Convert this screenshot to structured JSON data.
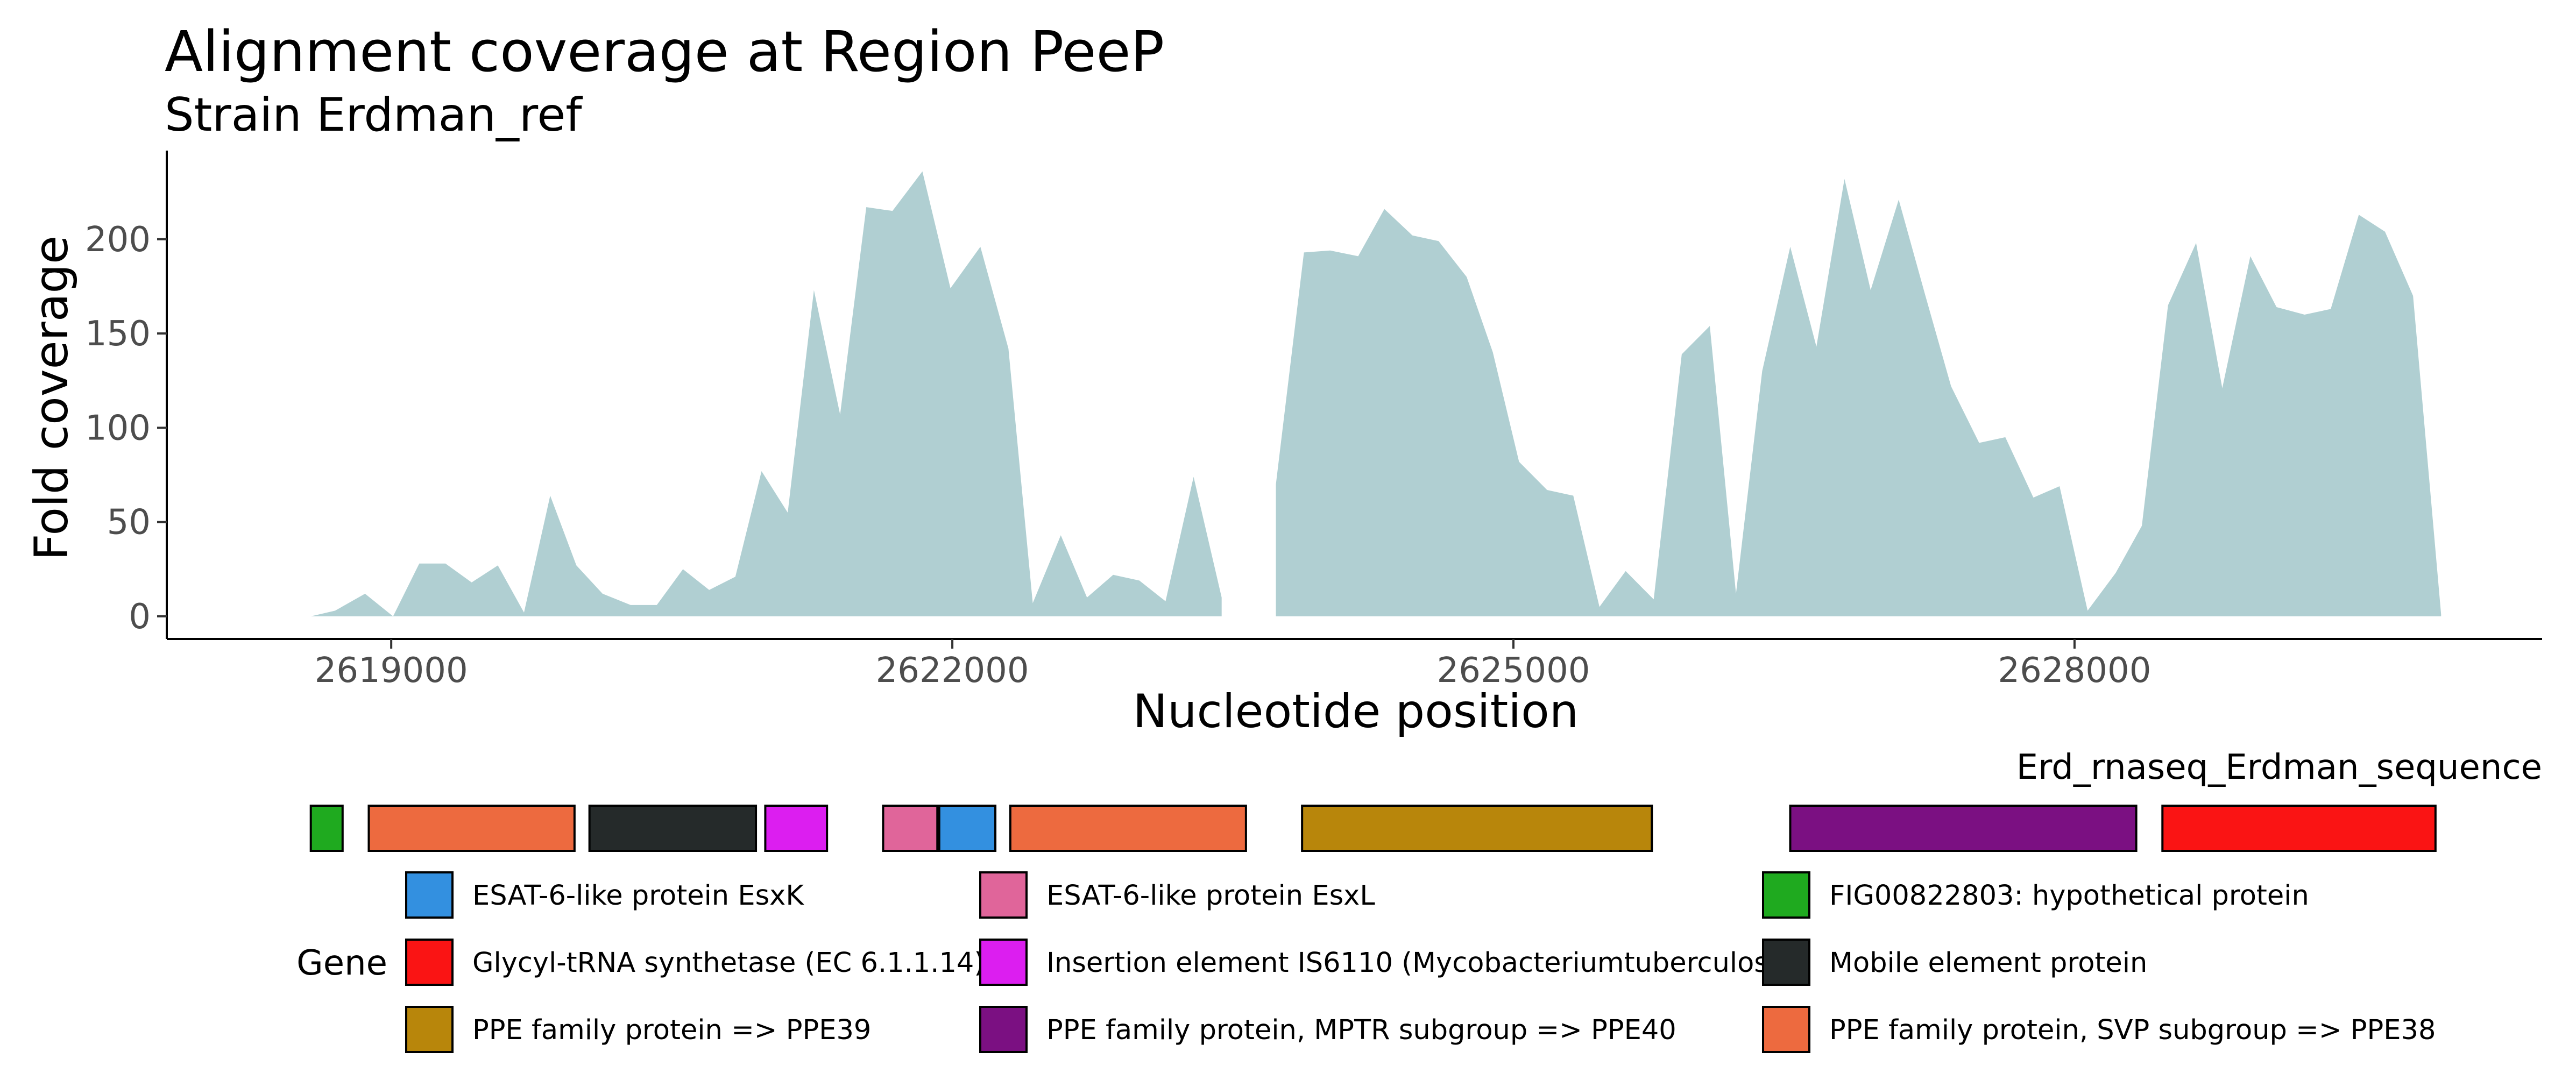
{
  "chart_data": {
    "type": "area",
    "title": "Alignment coverage at Region PeeP",
    "subtitle": "Strain Erdman_ref",
    "xlabel": "Nucleotide position",
    "ylabel": "Fold coverage",
    "xlim": [
      2617800,
      2630500
    ],
    "ylim": [
      -12,
      247
    ],
    "x_ticks": [
      2619000,
      2622000,
      2625000,
      2628000
    ],
    "y_ticks": [
      0,
      50,
      100,
      150,
      200
    ],
    "fill_color": "#b0cfd2",
    "grid": false,
    "series": [
      {
        "segments": [
          [
            [
              2618570,
              0
            ],
            [
              2618700,
              3
            ],
            [
              2618860,
              12
            ],
            [
              2619010,
              0
            ],
            [
              2619150,
              28
            ],
            [
              2619290,
              28
            ],
            [
              2619430,
              18
            ],
            [
              2619570,
              27
            ],
            [
              2619710,
              2
            ],
            [
              2619850,
              64
            ],
            [
              2619990,
              27
            ],
            [
              2620130,
              12
            ],
            [
              2620280,
              6
            ],
            [
              2620420,
              6
            ],
            [
              2620560,
              25
            ],
            [
              2620700,
              14
            ],
            [
              2620840,
              21
            ],
            [
              2620980,
              77
            ],
            [
              2621120,
              55
            ],
            [
              2621260,
              173
            ],
            [
              2621400,
              107
            ],
            [
              2621540,
              217
            ],
            [
              2621680,
              215
            ],
            [
              2621840,
              236
            ],
            [
              2621990,
              174
            ],
            [
              2622150,
              196
            ],
            [
              2622300,
              142
            ],
            [
              2622430,
              7
            ],
            [
              2622580,
              43
            ],
            [
              2622720,
              10
            ],
            [
              2622860,
              22
            ],
            [
              2623000,
              19
            ],
            [
              2623140,
              8
            ],
            [
              2623290,
              74
            ],
            [
              2623440,
              10
            ],
            [
              2623440,
              0
            ]
          ],
          [
            [
              2623730,
              0
            ],
            [
              2623730,
              70
            ],
            [
              2623880,
              193
            ],
            [
              2624020,
              194
            ],
            [
              2624170,
              191
            ],
            [
              2624310,
              216
            ],
            [
              2624460,
              202
            ],
            [
              2624600,
              199
            ],
            [
              2624750,
              180
            ],
            [
              2624890,
              140
            ],
            [
              2625030,
              82
            ],
            [
              2625180,
              67
            ],
            [
              2625320,
              64
            ],
            [
              2625460,
              5
            ],
            [
              2625600,
              24
            ],
            [
              2625750,
              9
            ],
            [
              2625900,
              139
            ],
            [
              2626050,
              154
            ],
            [
              2626190,
              12
            ],
            [
              2626330,
              130
            ],
            [
              2626480,
              196
            ],
            [
              2626620,
              143
            ],
            [
              2626770,
              232
            ],
            [
              2626910,
              173
            ],
            [
              2627060,
              221
            ],
            [
              2627200,
              171
            ],
            [
              2627340,
              122
            ],
            [
              2627490,
              92
            ],
            [
              2627630,
              95
            ],
            [
              2627780,
              63
            ],
            [
              2627920,
              69
            ],
            [
              2628070,
              3
            ],
            [
              2628220,
              23
            ],
            [
              2628360,
              48
            ],
            [
              2628500,
              165
            ],
            [
              2628650,
              198
            ],
            [
              2628790,
              121
            ],
            [
              2628940,
              191
            ],
            [
              2629080,
              164
            ],
            [
              2629230,
              160
            ],
            [
              2629370,
              163
            ],
            [
              2629520,
              213
            ],
            [
              2629660,
              204
            ],
            [
              2629810,
              170
            ],
            [
              2629960,
              1
            ],
            [
              2629960,
              0
            ]
          ]
        ]
      }
    ]
  },
  "gene_track": {
    "label": "Erd_rnaseq_Erdman_sequence",
    "genes": [
      {
        "start": 2618570,
        "end": 2618740,
        "color": "#1faa1f"
      },
      {
        "start": 2618880,
        "end": 2619980,
        "color": "#ed6a3f"
      },
      {
        "start": 2620060,
        "end": 2620950,
        "color": "#252a2a"
      },
      {
        "start": 2621000,
        "end": 2621330,
        "color": "#dc1ef0"
      },
      {
        "start": 2621630,
        "end": 2621920,
        "color": "#e0659a"
      },
      {
        "start": 2621930,
        "end": 2622230,
        "color": "#3390e0"
      },
      {
        "start": 2622310,
        "end": 2623570,
        "color": "#ed6a3f"
      },
      {
        "start": 2623870,
        "end": 2625740,
        "color": "#b8860b"
      },
      {
        "start": 2626480,
        "end": 2628330,
        "color": "#7b1082"
      },
      {
        "start": 2628470,
        "end": 2629930,
        "color": "#fa1414"
      }
    ]
  },
  "legend": {
    "title": "Gene",
    "entries": [
      {
        "label": "ESAT-6-like protein EsxK",
        "color": "#3390e0"
      },
      {
        "label": "ESAT-6-like protein EsxL",
        "color": "#e0659a"
      },
      {
        "label": "FIG00822803: hypothetical protein",
        "color": "#1faa1f"
      },
      {
        "label": "Glycyl-tRNA synthetase (EC 6.1.1.14)",
        "color": "#fa1414"
      },
      {
        "label": "Insertion element IS6110 (Mycobacteriumtuberculosi",
        "color": "#dc1ef0"
      },
      {
        "label": "Mobile element protein",
        "color": "#252a2a"
      },
      {
        "label": "PPE family protein => PPE39",
        "color": "#b8860b"
      },
      {
        "label": "PPE family protein, MPTR subgroup => PPE40",
        "color": "#7b1082"
      },
      {
        "label": "PPE family protein, SVP subgroup => PPE38",
        "color": "#ed6a3f"
      }
    ]
  }
}
